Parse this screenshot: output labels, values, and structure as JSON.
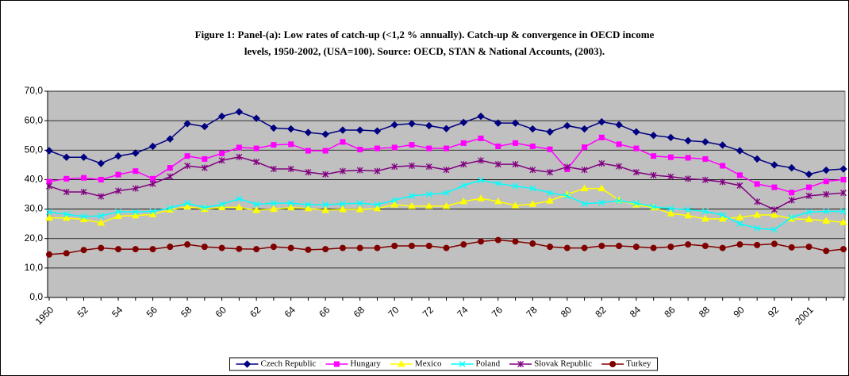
{
  "chart_data": {
    "type": "line",
    "title": [
      "Figure 1: Panel-(a): Low rates of catch-up (<1,2 % annually). Catch-up & convergence in OECD income",
      "levels, 1950-2002, (USA=100). Source: OECD, STAN & National Accounts, (2003)."
    ],
    "categories": [
      "1950",
      null,
      "52",
      null,
      "54",
      null,
      "56",
      null,
      "58",
      null,
      "60",
      null,
      "62",
      null,
      "64",
      null,
      "66",
      null,
      "68",
      null,
      "70",
      null,
      "72",
      null,
      "74",
      null,
      "76",
      null,
      "78",
      null,
      "80",
      null,
      "82",
      null,
      "84",
      null,
      "86",
      null,
      "88",
      null,
      "90",
      null,
      "92",
      null,
      "2001",
      null,
      null
    ],
    "series": [
      {
        "name": "Czech Republic",
        "color": "#000080",
        "values": [
          49.8,
          47.6,
          47.6,
          45.5,
          48,
          49,
          51.3,
          53.8,
          59,
          58,
          61.5,
          63,
          60.8,
          57.5,
          57.2,
          56,
          55.4,
          56.8,
          56.8,
          56.5,
          58.6,
          59,
          58.3,
          57.3,
          59.4,
          61.5,
          59.2,
          59.2,
          57.2,
          56.2,
          58.3,
          57.2,
          59.6,
          58.6,
          56.2,
          55,
          54.3,
          53.2,
          52.8,
          51.7,
          49.8,
          47,
          45,
          44,
          41.8,
          43.2,
          43.6
        ]
      },
      {
        "name": "Hungary",
        "color": "#ff00ff",
        "values": [
          39.3,
          40.3,
          40.6,
          40,
          41.7,
          42.9,
          40.3,
          44,
          48,
          47,
          48.9,
          50.9,
          50.6,
          51.8,
          52,
          49.8,
          49.8,
          52.8,
          50.2,
          50.6,
          50.9,
          51.8,
          50.6,
          50.6,
          52.4,
          54,
          51.3,
          52.4,
          51.3,
          50.3,
          43.5,
          51,
          54.3,
          52,
          50.6,
          48,
          47.6,
          47.4,
          47,
          44.7,
          41.5,
          38.5,
          37.4,
          35.6,
          37.4,
          39.4,
          40
        ]
      },
      {
        "name": "Mexico",
        "color": "#ffff00",
        "values": [
          27,
          27,
          26.5,
          25.3,
          27.6,
          27.8,
          28.2,
          29.8,
          30.8,
          30,
          30.6,
          30.6,
          29.6,
          30,
          30.5,
          30.2,
          29.6,
          29.9,
          29.9,
          30.2,
          31.5,
          31,
          31,
          31,
          32.6,
          33.6,
          32.6,
          31.2,
          31.7,
          32.8,
          35,
          37,
          37,
          33,
          31.5,
          30.5,
          28.5,
          27.8,
          26.7,
          26.7,
          27.2,
          28,
          28,
          26.7,
          26.5,
          26,
          25.5
        ]
      },
      {
        "name": "Poland",
        "color": "#00ffff",
        "values": [
          29,
          28.2,
          27.5,
          27.7,
          29.1,
          29,
          29.2,
          30.4,
          32,
          30.5,
          31.6,
          33.5,
          31.6,
          32,
          32,
          31.5,
          31.5,
          31.8,
          32,
          31.5,
          33,
          34.5,
          35,
          35.5,
          38,
          39.8,
          38.7,
          37.8,
          37,
          35.5,
          34.5,
          31.8,
          32.2,
          32.8,
          32,
          30.8,
          30.2,
          29.8,
          29.2,
          28,
          25,
          23.5,
          23,
          27.2,
          29,
          29.2,
          29.2
        ]
      },
      {
        "name": "Slovak Republic",
        "color": "#800080",
        "values": [
          37.8,
          35.8,
          35.8,
          34.3,
          36.2,
          37,
          38.6,
          41,
          44.7,
          44,
          46.5,
          47.7,
          46,
          43.6,
          43.6,
          42.5,
          41.8,
          42.9,
          43.2,
          42.9,
          44.4,
          44.7,
          44.4,
          43.3,
          45.2,
          46.5,
          45.2,
          45.2,
          43.3,
          42.5,
          44.3,
          43.3,
          45.5,
          44.5,
          42.5,
          41.5,
          41,
          40.3,
          39.9,
          39.2,
          38,
          32.5,
          29.8,
          33,
          34.5,
          35,
          35.5
        ]
      },
      {
        "name": "Turkey",
        "color": "#800000",
        "values": [
          14.6,
          15,
          16.1,
          16.8,
          16.4,
          16.4,
          16.4,
          17.2,
          18,
          17.2,
          16.8,
          16.5,
          16.4,
          17.2,
          16.8,
          16.2,
          16.4,
          16.8,
          16.8,
          16.8,
          17.5,
          17.5,
          17.5,
          16.8,
          18,
          19,
          19.5,
          19,
          18.3,
          17.2,
          16.8,
          16.8,
          17.5,
          17.5,
          17.2,
          16.8,
          17.2,
          18,
          17.5,
          16.8,
          18,
          17.8,
          18.2,
          17,
          17.2,
          15.8,
          16.4
        ]
      }
    ],
    "ylim": [
      0,
      70
    ],
    "yticks": [
      {
        "value": 0,
        "label": "0,0"
      },
      {
        "value": 10,
        "label": "10,0"
      },
      {
        "value": 20,
        "label": "20,0"
      },
      {
        "value": 30,
        "label": "30,0"
      },
      {
        "value": 40,
        "label": "40,0"
      },
      {
        "value": 50,
        "label": "50,0"
      },
      {
        "value": 60,
        "label": "60,0"
      },
      {
        "value": 70,
        "label": "70,0"
      }
    ],
    "grid": true,
    "legend": "bottom"
  }
}
